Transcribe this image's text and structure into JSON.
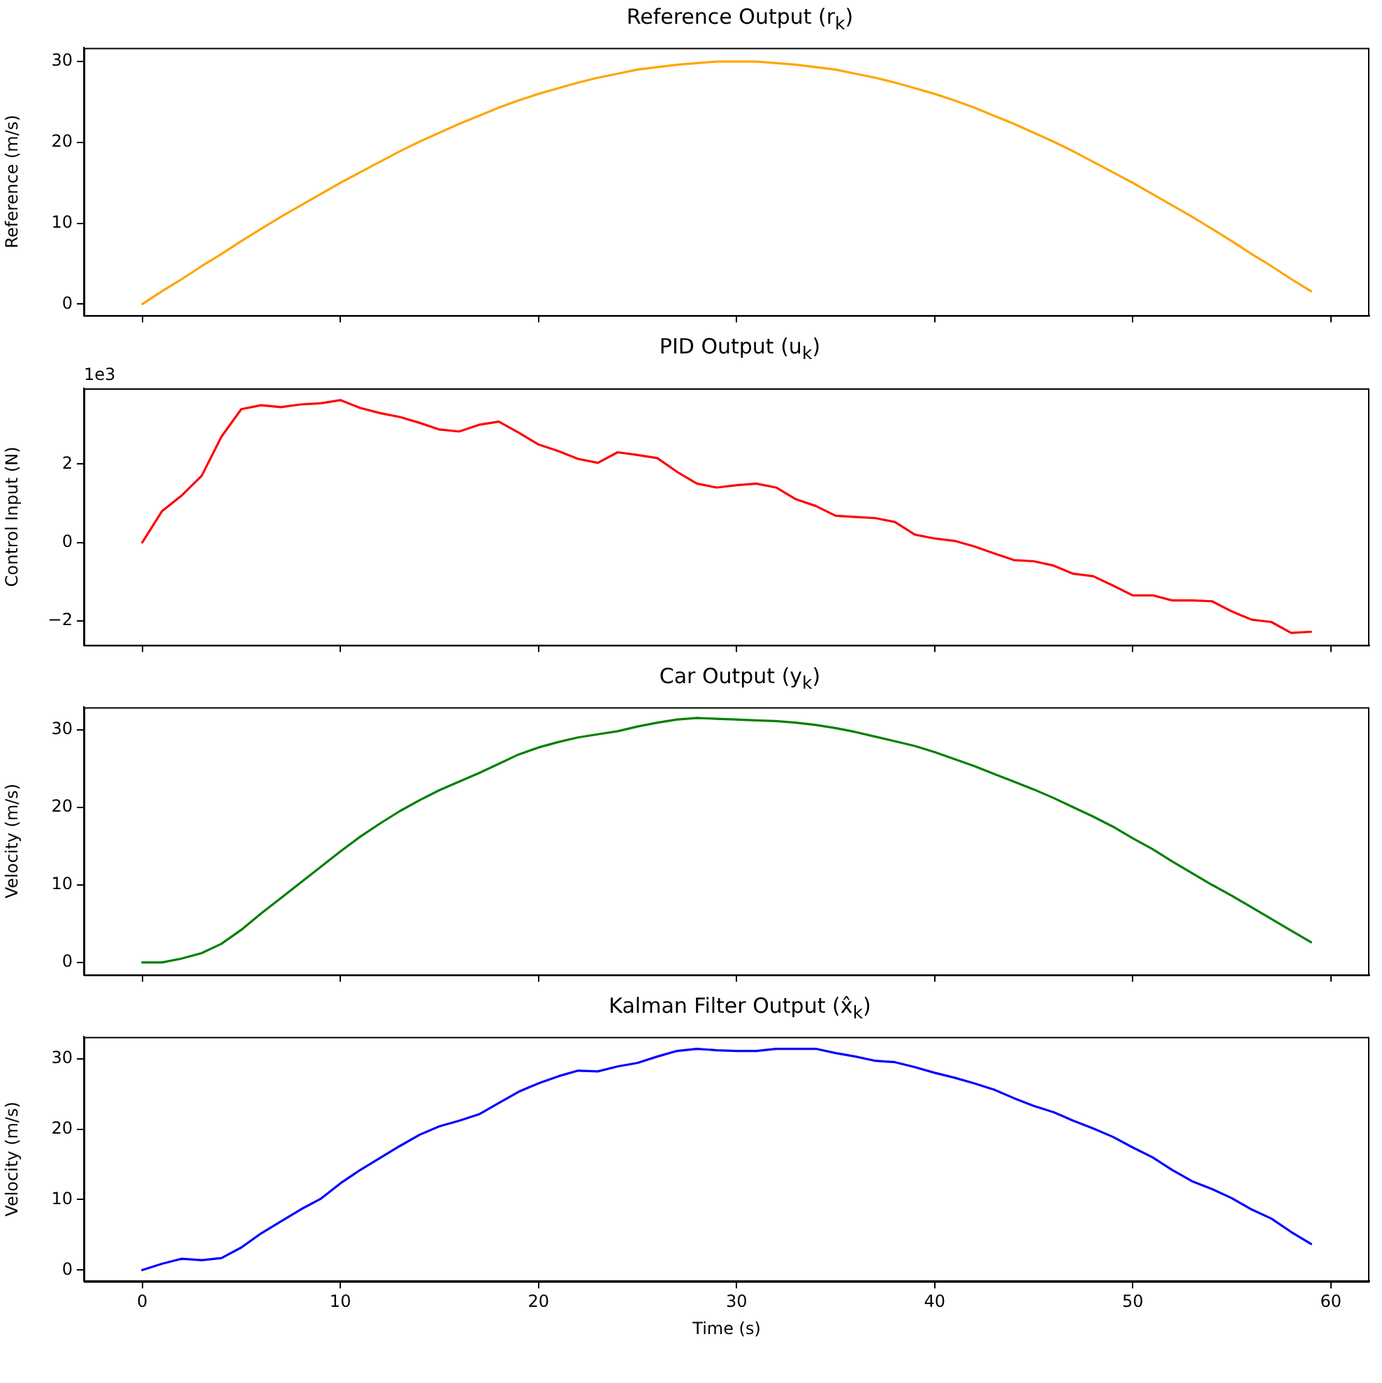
{
  "chart_data": [
    {
      "type": "line",
      "title": "Reference Output (r$_{k}$)",
      "ylabel": "Reference (m/s)",
      "x": [
        0,
        1,
        2,
        3,
        4,
        5,
        6,
        7,
        8,
        9,
        10,
        11,
        12,
        13,
        14,
        15,
        16,
        17,
        18,
        19,
        20,
        21,
        22,
        23,
        24,
        25,
        26,
        27,
        28,
        29,
        30,
        31,
        32,
        33,
        34,
        35,
        36,
        37,
        38,
        39,
        40,
        41,
        42,
        43,
        44,
        45,
        46,
        47,
        48,
        49,
        50,
        51,
        52,
        53,
        54,
        55,
        56,
        57,
        58,
        59
      ],
      "series": [
        {
          "color": "#ffa500",
          "values": [
            0,
            1.6,
            3.1,
            4.7,
            6.2,
            7.8,
            9.3,
            10.8,
            12.2,
            13.6,
            15.0,
            16.3,
            17.6,
            18.9,
            20.1,
            21.2,
            22.3,
            23.3,
            24.3,
            25.2,
            26.0,
            26.7,
            27.4,
            28.0,
            28.5,
            29.0,
            29.3,
            29.6,
            29.8,
            30.0,
            30.0,
            30.0,
            29.8,
            29.6,
            29.3,
            29.0,
            28.5,
            28.0,
            27.4,
            26.7,
            26.0,
            25.2,
            24.3,
            23.3,
            22.3,
            21.2,
            20.1,
            18.9,
            17.6,
            16.3,
            15.0,
            13.6,
            12.2,
            10.8,
            9.3,
            7.8,
            6.2,
            4.7,
            3.1,
            1.6
          ]
        }
      ],
      "xlim": [
        -2.95,
        61.95
      ],
      "xticks": [
        0,
        10,
        20,
        30,
        40,
        50,
        60
      ],
      "ylim": [
        -1.4,
        31.7
      ],
      "yticks": [
        0,
        10,
        20,
        30
      ],
      "tick_labels": "y",
      "grid": false,
      "legend": false
    },
    {
      "type": "line",
      "title": "PID Output (u$_{k}$)",
      "ylabel": "Control Input (N)",
      "annotations": [
        "1e3"
      ],
      "x": [
        0,
        1,
        2,
        3,
        4,
        5,
        6,
        7,
        8,
        9,
        10,
        11,
        12,
        13,
        14,
        15,
        16,
        17,
        18,
        19,
        20,
        21,
        22,
        23,
        24,
        25,
        26,
        27,
        28,
        29,
        30,
        31,
        32,
        33,
        34,
        35,
        36,
        37,
        38,
        39,
        40,
        41,
        42,
        43,
        44,
        45,
        46,
        47,
        48,
        49,
        50,
        51,
        52,
        53,
        54,
        55,
        56,
        57,
        58,
        59
      ],
      "series": [
        {
          "color": "#ff0000",
          "values": [
            0,
            0.8,
            1.2,
            1.7,
            2.7,
            3.4,
            3.5,
            3.45,
            3.52,
            3.55,
            3.63,
            3.43,
            3.3,
            3.2,
            3.05,
            2.88,
            2.83,
            3.0,
            3.08,
            2.8,
            2.5,
            2.33,
            2.13,
            2.03,
            2.3,
            2.23,
            2.15,
            1.8,
            1.5,
            1.4,
            1.46,
            1.5,
            1.4,
            1.1,
            0.93,
            0.68,
            0.65,
            0.62,
            0.52,
            0.2,
            0.1,
            0.04,
            -0.1,
            -0.28,
            -0.45,
            -0.48,
            -0.59,
            -0.8,
            -0.86,
            -1.1,
            -1.35,
            -1.35,
            -1.48,
            -1.48,
            -1.5,
            -1.76,
            -1.97,
            -2.03,
            -2.31,
            -2.28
          ]
        }
      ],
      "xlim": [
        -2.95,
        61.95
      ],
      "xticks": [
        0,
        10,
        20,
        30,
        40,
        50,
        60
      ],
      "ylim": [
        -2.62,
        3.93
      ],
      "yticks": [
        {
          "value": -2,
          "label": "−2"
        },
        0,
        2
      ],
      "tick_labels": "y",
      "grid": false,
      "legend": false
    },
    {
      "type": "line",
      "title": "Car Output (y$_{k}$)",
      "ylabel": "Velocity (m/s)",
      "x": [
        0,
        1,
        2,
        3,
        4,
        5,
        6,
        7,
        8,
        9,
        10,
        11,
        12,
        13,
        14,
        15,
        16,
        17,
        18,
        19,
        20,
        21,
        22,
        23,
        24,
        25,
        26,
        27,
        28,
        29,
        30,
        31,
        32,
        33,
        34,
        35,
        36,
        37,
        38,
        39,
        40,
        41,
        42,
        43,
        44,
        45,
        46,
        47,
        48,
        49,
        50,
        51,
        52,
        53,
        54,
        55,
        56,
        57,
        58,
        59
      ],
      "series": [
        {
          "color": "#008000",
          "values": [
            0,
            0,
            0.5,
            1.2,
            2.4,
            4.2,
            6.3,
            8.3,
            10.3,
            12.3,
            14.3,
            16.2,
            17.9,
            19.5,
            20.9,
            22.2,
            23.3,
            24.4,
            25.6,
            26.8,
            27.7,
            28.4,
            29.0,
            29.4,
            29.8,
            30.4,
            30.9,
            31.3,
            31.5,
            31.4,
            31.3,
            31.2,
            31.1,
            30.9,
            30.6,
            30.2,
            29.7,
            29.1,
            28.5,
            27.9,
            27.1,
            26.2,
            25.3,
            24.3,
            23.3,
            22.3,
            21.2,
            20.0,
            18.8,
            17.5,
            16.0,
            14.6,
            13.0,
            11.5,
            10.0,
            8.6,
            7.1,
            5.6,
            4.1,
            2.6
          ]
        }
      ],
      "xlim": [
        -2.95,
        61.95
      ],
      "xticks": [
        0,
        10,
        20,
        30,
        40,
        50,
        60
      ],
      "ylim": [
        -1.6,
        32.9
      ],
      "yticks": [
        0,
        10,
        20,
        30
      ],
      "tick_labels": "y",
      "grid": false,
      "legend": false
    },
    {
      "type": "line",
      "title": "Kalman Filter Output (x̂$_{k}$)",
      "xlabel": "Time (s)",
      "ylabel": "Velocity (m/s)",
      "x": [
        0,
        1,
        2,
        3,
        4,
        5,
        6,
        7,
        8,
        9,
        10,
        11,
        12,
        13,
        14,
        15,
        16,
        17,
        18,
        19,
        20,
        21,
        22,
        23,
        24,
        25,
        26,
        27,
        28,
        29,
        30,
        31,
        32,
        33,
        34,
        35,
        36,
        37,
        38,
        39,
        40,
        41,
        42,
        43,
        44,
        45,
        46,
        47,
        48,
        49,
        50,
        51,
        52,
        53,
        54,
        55,
        56,
        57,
        58,
        59
      ],
      "series": [
        {
          "color": "#0000ff",
          "values": [
            0,
            0.9,
            1.6,
            1.4,
            1.7,
            3.2,
            5.2,
            6.9,
            8.6,
            10.1,
            12.3,
            14.2,
            15.9,
            17.6,
            19.2,
            20.4,
            21.2,
            22.1,
            23.7,
            25.3,
            26.5,
            27.5,
            28.3,
            28.2,
            28.9,
            29.4,
            30.3,
            31.1,
            31.4,
            31.2,
            31.1,
            31.1,
            31.4,
            31.4,
            31.4,
            30.8,
            30.3,
            29.7,
            29.5,
            28.8,
            28.0,
            27.3,
            26.5,
            25.6,
            24.4,
            23.3,
            22.4,
            21.2,
            20.1,
            18.9,
            17.4,
            16.0,
            14.2,
            12.6,
            11.5,
            10.2,
            8.6,
            7.3,
            5.4,
            3.7
          ]
        }
      ],
      "xlim": [
        -2.95,
        61.95
      ],
      "xticks": [
        0,
        10,
        20,
        30,
        40,
        50,
        60
      ],
      "ylim": [
        -1.6,
        33.1
      ],
      "yticks": [
        0,
        10,
        20,
        30
      ],
      "grid": false,
      "legend": false
    }
  ]
}
